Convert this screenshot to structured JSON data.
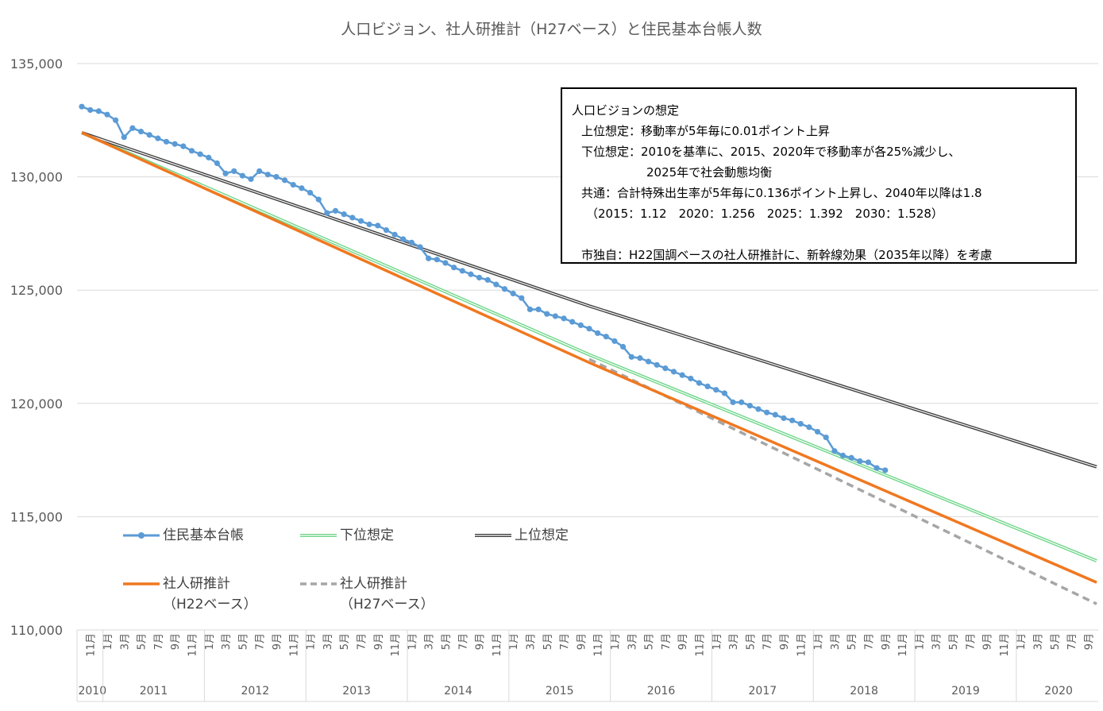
{
  "chart_data": {
    "type": "line",
    "title": "人口ビジョン、社人研推計（H27ベース）と住民基本台帳人数",
    "ylim": [
      110000,
      135000
    ],
    "y_ticks": [
      "110,000",
      "115,000",
      "120,000",
      "125,000",
      "130,000",
      "135,000"
    ],
    "y_tick_values": [
      110000,
      115000,
      120000,
      125000,
      130000,
      135000
    ],
    "x_axis": {
      "start": "2010-10",
      "end": "2020-10",
      "month_ticks_label_suffix": "月",
      "year_labels": [
        {
          "label": "2010",
          "year": 2010
        },
        {
          "label": "2011",
          "year": 2011
        },
        {
          "label": "2012",
          "year": 2012
        },
        {
          "label": "2013",
          "year": 2013
        },
        {
          "label": "2014",
          "year": 2014
        },
        {
          "label": "2015",
          "year": 2015
        },
        {
          "label": "2016",
          "year": 2016
        },
        {
          "label": "2017",
          "year": 2017
        },
        {
          "label": "2018",
          "year": 2018
        },
        {
          "label": "2019",
          "year": 2019
        },
        {
          "label": "2020",
          "year": 2020
        }
      ]
    },
    "grid": true,
    "series": [
      {
        "name": "住民基本台帳",
        "style": "line-markers",
        "color": "#5b9bd5",
        "points": [
          [
            "2010-10",
            133100
          ],
          [
            "2010-11",
            132950
          ],
          [
            "2010-12",
            132900
          ],
          [
            "2011-01",
            132750
          ],
          [
            "2011-02",
            132500
          ],
          [
            "2011-03",
            131750
          ],
          [
            "2011-04",
            132150
          ],
          [
            "2011-05",
            132000
          ],
          [
            "2011-06",
            131850
          ],
          [
            "2011-07",
            131700
          ],
          [
            "2011-08",
            131550
          ],
          [
            "2011-09",
            131450
          ],
          [
            "2011-10",
            131350
          ],
          [
            "2011-11",
            131150
          ],
          [
            "2011-12",
            131000
          ],
          [
            "2012-01",
            130850
          ],
          [
            "2012-02",
            130600
          ],
          [
            "2012-03",
            130150
          ],
          [
            "2012-04",
            130250
          ],
          [
            "2012-05",
            130050
          ],
          [
            "2012-06",
            129900
          ],
          [
            "2012-07",
            130250
          ],
          [
            "2012-08",
            130100
          ],
          [
            "2012-09",
            130000
          ],
          [
            "2012-10",
            129850
          ],
          [
            "2012-11",
            129650
          ],
          [
            "2012-12",
            129500
          ],
          [
            "2013-01",
            129300
          ],
          [
            "2013-02",
            129000
          ],
          [
            "2013-03",
            128400
          ],
          [
            "2013-04",
            128500
          ],
          [
            "2013-05",
            128350
          ],
          [
            "2013-06",
            128200
          ],
          [
            "2013-07",
            128050
          ],
          [
            "2013-08",
            127900
          ],
          [
            "2013-09",
            127850
          ],
          [
            "2013-10",
            127650
          ],
          [
            "2013-11",
            127450
          ],
          [
            "2013-12",
            127250
          ],
          [
            "2014-01",
            127100
          ],
          [
            "2014-02",
            126900
          ],
          [
            "2014-03",
            126400
          ],
          [
            "2014-04",
            126350
          ],
          [
            "2014-05",
            126200
          ],
          [
            "2014-06",
            126000
          ],
          [
            "2014-07",
            125850
          ],
          [
            "2014-08",
            125700
          ],
          [
            "2014-09",
            125550
          ],
          [
            "2014-10",
            125450
          ],
          [
            "2014-11",
            125250
          ],
          [
            "2014-12",
            125050
          ],
          [
            "2015-01",
            124850
          ],
          [
            "2015-02",
            124650
          ],
          [
            "2015-03",
            124150
          ],
          [
            "2015-04",
            124150
          ],
          [
            "2015-05",
            123950
          ],
          [
            "2015-06",
            123850
          ],
          [
            "2015-07",
            123750
          ],
          [
            "2015-08",
            123600
          ],
          [
            "2015-09",
            123450
          ],
          [
            "2015-10",
            123300
          ],
          [
            "2015-11",
            123100
          ],
          [
            "2015-12",
            122950
          ],
          [
            "2016-01",
            122750
          ],
          [
            "2016-02",
            122500
          ],
          [
            "2016-03",
            122050
          ],
          [
            "2016-04",
            122000
          ],
          [
            "2016-05",
            121850
          ],
          [
            "2016-06",
            121700
          ],
          [
            "2016-07",
            121550
          ],
          [
            "2016-08",
            121400
          ],
          [
            "2016-09",
            121250
          ],
          [
            "2016-10",
            121100
          ],
          [
            "2016-11",
            120900
          ],
          [
            "2016-12",
            120750
          ],
          [
            "2017-01",
            120600
          ],
          [
            "2017-02",
            120450
          ],
          [
            "2017-03",
            120050
          ],
          [
            "2017-04",
            120050
          ],
          [
            "2017-05",
            119900
          ],
          [
            "2017-06",
            119750
          ],
          [
            "2017-07",
            119600
          ],
          [
            "2017-08",
            119500
          ],
          [
            "2017-09",
            119350
          ],
          [
            "2017-10",
            119250
          ],
          [
            "2017-11",
            119100
          ],
          [
            "2017-12",
            118950
          ],
          [
            "2018-01",
            118750
          ],
          [
            "2018-02",
            118500
          ],
          [
            "2018-03",
            117900
          ],
          [
            "2018-04",
            117700
          ],
          [
            "2018-05",
            117600
          ],
          [
            "2018-06",
            117450
          ],
          [
            "2018-07",
            117400
          ],
          [
            "2018-08",
            117150
          ],
          [
            "2018-09",
            117050
          ]
        ]
      },
      {
        "name": "下位想定",
        "style": "double-line",
        "color": "#70d68a",
        "points": [
          [
            "2010-10",
            131950
          ],
          [
            "2015-10",
            122150
          ],
          [
            "2020-10",
            113050
          ]
        ]
      },
      {
        "name": "上位想定",
        "style": "double-line",
        "color": "#404040",
        "points": [
          [
            "2010-10",
            131950
          ],
          [
            "2015-10",
            124300
          ],
          [
            "2020-10",
            117200
          ]
        ]
      },
      {
        "name": "社人研推計（H22ベース）",
        "style": "line",
        "color": "#f07820",
        "points": [
          [
            "2010-10",
            131950
          ],
          [
            "2015-10",
            121800
          ],
          [
            "2020-10",
            112100
          ]
        ]
      },
      {
        "name": "社人研推計（H27ベース）",
        "style": "dashed",
        "color": "#a6a6a6",
        "points": [
          [
            "2015-10",
            121950
          ],
          [
            "2020-10",
            111150
          ]
        ]
      }
    ]
  },
  "legend": {
    "items": [
      {
        "label": "住民基本台帳"
      },
      {
        "label": "下位想定"
      },
      {
        "label": "上位想定"
      },
      {
        "label": "社人研推計",
        "label2": "（H22ベース）"
      },
      {
        "label": "社人研推計",
        "label2": "（H27ベース）"
      }
    ]
  },
  "note": {
    "lines": [
      "人口ビジョンの想定",
      "上位想定：移動率が5年毎に0.01ポイント上昇",
      "下位想定：2010を基準に、2015、2020年で移動率が各25%減少し、",
      "2025年で社会動態均衡",
      "共通：合計特殊出生率が5年毎に0.136ポイント上昇し、2040年以降は1.8",
      "（2015：1.12　2020：1.256　2025：1.392　2030：1.528）",
      "市独自：H22国調ベースの社人研推計に、新幹線効果（2035年以降）を考慮"
    ]
  },
  "colors": {
    "grid": "#d9d9d9",
    "axis_text": "#595959",
    "note_border": "#000000"
  }
}
